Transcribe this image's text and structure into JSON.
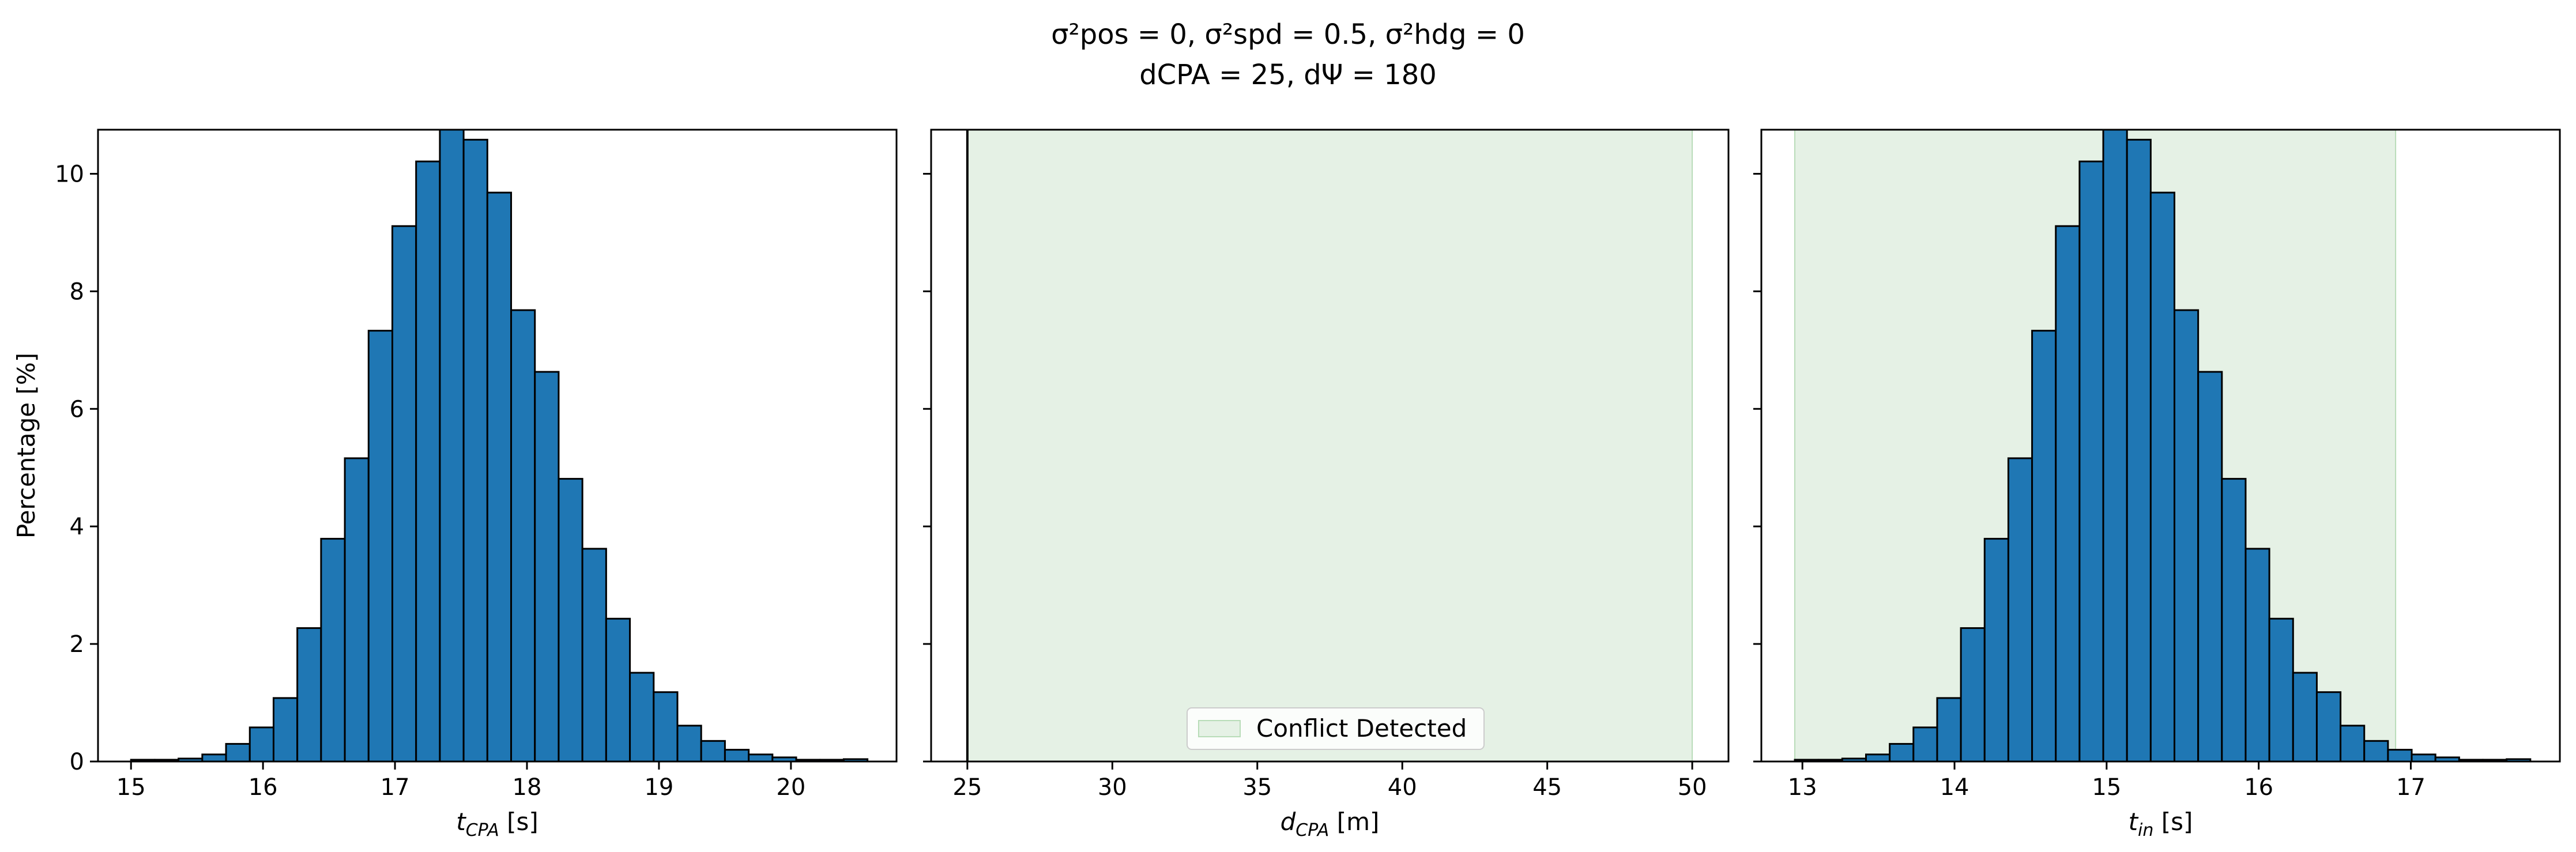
{
  "figure": {
    "title_line1": "σ²pos = 0, σ²spd = 0.5, σ²hdg = 0",
    "title_line2": "dCPA = 25, dΨ = 180"
  },
  "colors": {
    "bar_fill": "#1f77b4",
    "bar_edge": "#000000",
    "conflict_fill": "#e5f1e5",
    "conflict_edge": "#b8dcb8"
  },
  "chart_data": [
    {
      "type": "bar",
      "title": "",
      "xlabel_main": "t",
      "xlabel_sub": "CPA",
      "xlabel_unit": " [s]",
      "ylabel": "Percentage [%]",
      "xlim": [
        14.75,
        20.8
      ],
      "ylim": [
        0,
        10.75
      ],
      "xticks": [
        15,
        16,
        17,
        18,
        19,
        20
      ],
      "yticks": [
        0,
        2,
        4,
        6,
        8,
        10
      ],
      "bin_start": 15.0,
      "bin_width": 0.18,
      "values": [
        0.03,
        0.03,
        0.05,
        0.12,
        0.3,
        0.58,
        1.08,
        2.27,
        3.79,
        5.16,
        7.33,
        9.11,
        10.21,
        10.8,
        10.58,
        9.68,
        7.68,
        6.63,
        4.81,
        3.62,
        2.43,
        1.51,
        1.18,
        0.61,
        0.35,
        0.2,
        0.12,
        0.07,
        0.03,
        0.03,
        0.04
      ],
      "conflict_span": null,
      "legend": null
    },
    {
      "type": "area",
      "title": "",
      "xlabel_main": "d",
      "xlabel_sub": "CPA",
      "xlabel_unit": " [m]",
      "ylabel": "",
      "xlim": [
        23.75,
        51.25
      ],
      "ylim": [
        0,
        10.75
      ],
      "xticks": [
        25,
        30,
        35,
        40,
        45,
        50
      ],
      "yticks": [
        0,
        2,
        4,
        6,
        8,
        10
      ],
      "vertical_line": 25,
      "conflict_span": [
        25,
        50
      ],
      "legend": {
        "label": "Conflict Detected",
        "position": "lower center"
      },
      "values": []
    },
    {
      "type": "bar",
      "title": "",
      "xlabel_main": "t",
      "xlabel_sub": "in",
      "xlabel_unit": " [s]",
      "ylabel": "",
      "xlim": [
        12.73,
        17.98
      ],
      "ylim": [
        0,
        10.75
      ],
      "xticks": [
        13,
        14,
        15,
        16,
        17
      ],
      "yticks": [
        0,
        2,
        4,
        6,
        8,
        10
      ],
      "bin_start": 12.95,
      "bin_width": 0.156,
      "values": [
        0.03,
        0.03,
        0.05,
        0.12,
        0.3,
        0.58,
        1.08,
        2.27,
        3.79,
        5.16,
        7.33,
        9.11,
        10.21,
        10.8,
        10.58,
        9.68,
        7.68,
        6.63,
        4.81,
        3.62,
        2.43,
        1.51,
        1.18,
        0.61,
        0.35,
        0.2,
        0.12,
        0.07,
        0.03,
        0.03,
        0.04
      ],
      "conflict_span": [
        12.95,
        16.9
      ],
      "legend": null
    }
  ]
}
